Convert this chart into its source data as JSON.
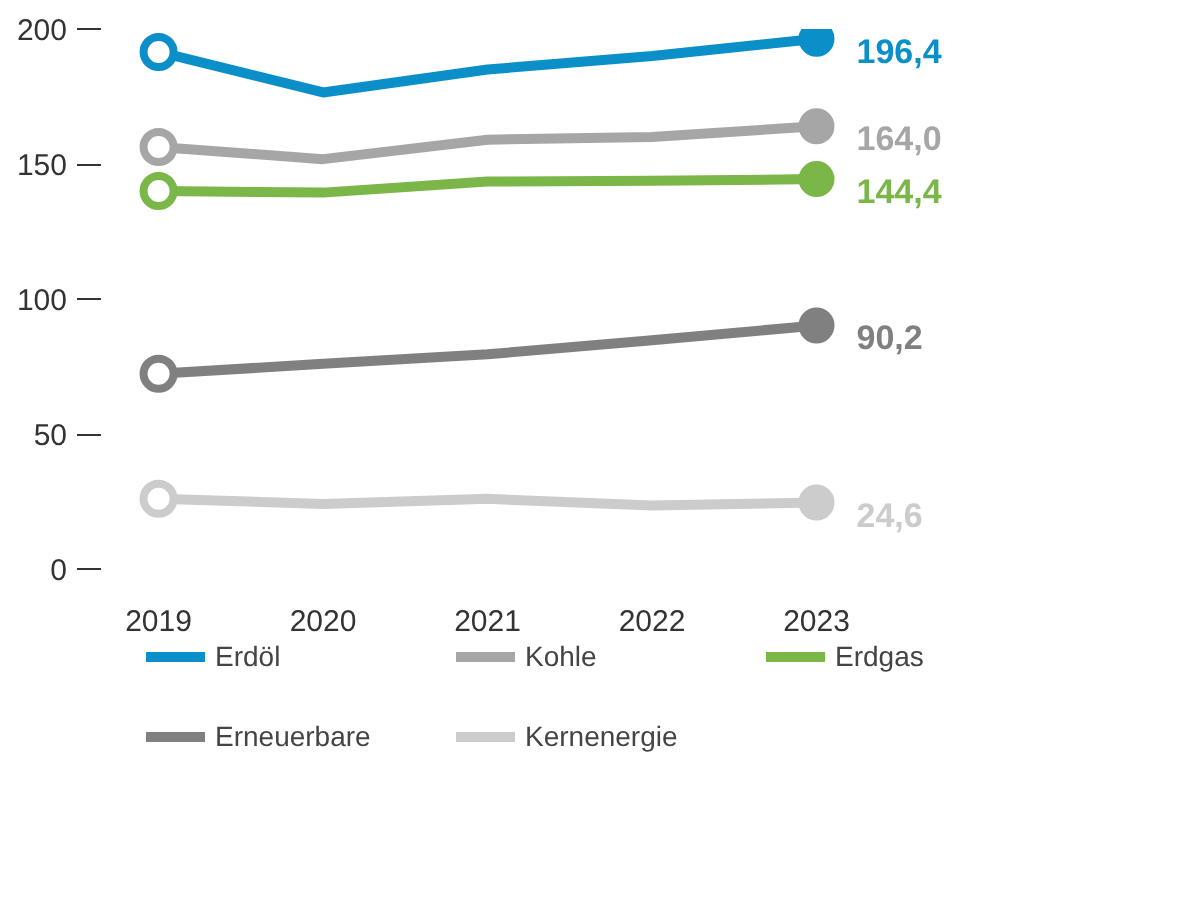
{
  "chart_data": {
    "type": "line",
    "categories": [
      "2019",
      "2020",
      "2021",
      "2022",
      "2023"
    ],
    "ylim": [
      0,
      200
    ],
    "yticks": [
      0,
      50,
      100,
      150,
      200
    ],
    "grid": false,
    "legend": "bottom",
    "line_style": "solid",
    "series": [
      {
        "name": "Erdöl",
        "color": "#0a8fc8",
        "values": [
          191.5,
          176.5,
          185,
          190,
          196.4
        ],
        "value_labels": [
          null,
          null,
          null,
          null,
          "196,4"
        ]
      },
      {
        "name": "Kohle",
        "color": "#a6a6a6",
        "values": [
          156.3,
          151.8,
          159,
          160,
          164.0
        ],
        "value_labels": [
          null,
          null,
          null,
          null,
          "164,0"
        ]
      },
      {
        "name": "Erdgas",
        "color": "#7ab648",
        "values": [
          140,
          139.4,
          143.5,
          143.8,
          144.4
        ],
        "value_labels": [
          null,
          null,
          null,
          null,
          "144,4"
        ]
      },
      {
        "name": "Erneuerbare",
        "color": "#808080",
        "values": [
          72.3,
          76,
          79.5,
          84.7,
          90.2
        ],
        "value_labels": [
          null,
          null,
          null,
          null,
          "90,2"
        ]
      },
      {
        "name": "Kernenergie",
        "color": "#cccccc",
        "values": [
          26,
          24.1,
          26,
          23.5,
          24.6
        ],
        "value_labels": [
          null,
          null,
          null,
          null,
          "24,6"
        ]
      }
    ]
  }
}
